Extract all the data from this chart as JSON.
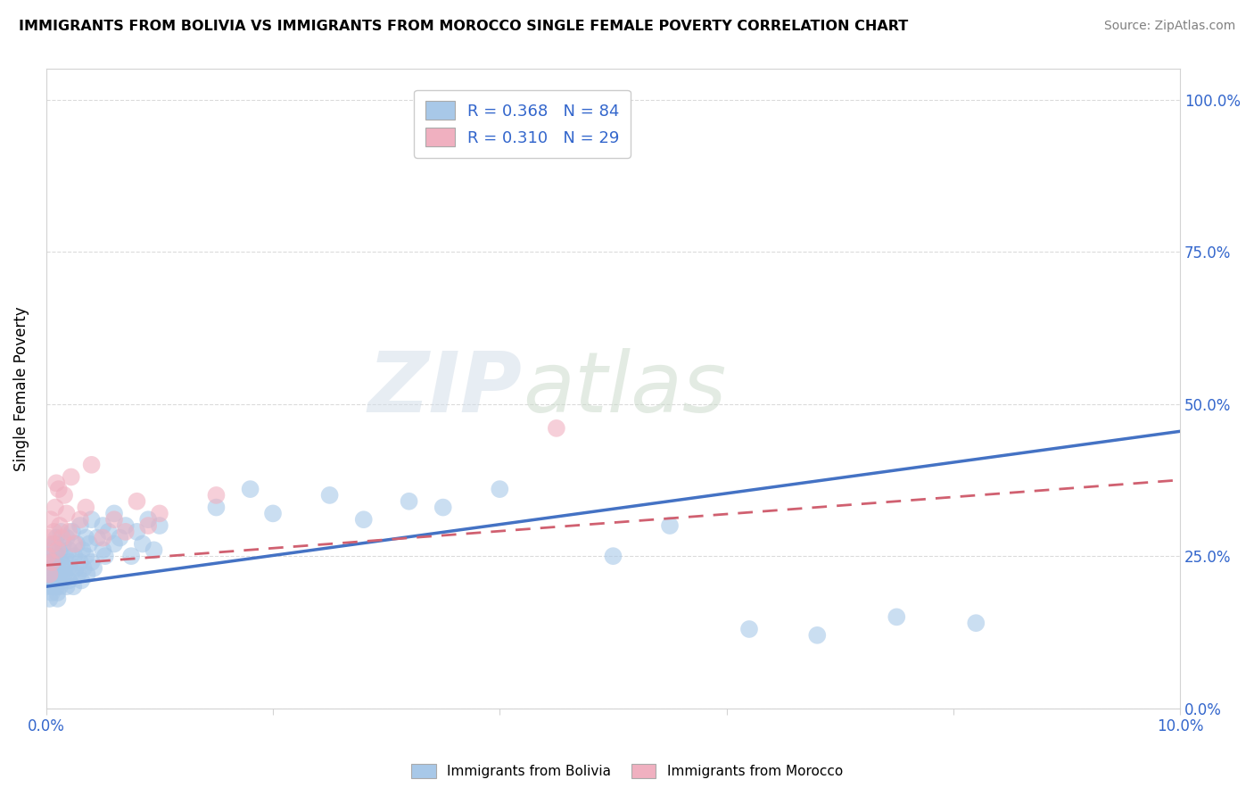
{
  "title": "IMMIGRANTS FROM BOLIVIA VS IMMIGRANTS FROM MOROCCO SINGLE FEMALE POVERTY CORRELATION CHART",
  "source": "Source: ZipAtlas.com",
  "ylabel": "Single Female Poverty",
  "xlim": [
    0.0,
    0.1
  ],
  "ylim": [
    0.0,
    1.05
  ],
  "ytick_positions": [
    0.0,
    0.25,
    0.5,
    0.75,
    1.0
  ],
  "yticklabels_right": [
    "0.0%",
    "25.0%",
    "50.0%",
    "75.0%",
    "100.0%"
  ],
  "bolivia_color": "#a8c8e8",
  "morocco_color": "#f0b0c0",
  "bolivia_R": 0.368,
  "bolivia_N": 84,
  "morocco_R": 0.31,
  "morocco_N": 29,
  "bolivia_line_color": "#4472c4",
  "morocco_line_color": "#d06070",
  "watermark_zip": "ZIP",
  "watermark_atlas": "atlas",
  "bolivia_x": [
    0.0001,
    0.0002,
    0.0003,
    0.0003,
    0.0004,
    0.0004,
    0.0005,
    0.0005,
    0.0006,
    0.0006,
    0.0007,
    0.0007,
    0.0008,
    0.0008,
    0.0009,
    0.0009,
    0.001,
    0.001,
    0.001,
    0.001,
    0.0011,
    0.0012,
    0.0012,
    0.0013,
    0.0013,
    0.0014,
    0.0015,
    0.0015,
    0.0016,
    0.0017,
    0.0018,
    0.0018,
    0.0019,
    0.002,
    0.002,
    0.0021,
    0.0022,
    0.0023,
    0.0024,
    0.0025,
    0.0026,
    0.0027,
    0.0028,
    0.003,
    0.003,
    0.0031,
    0.0032,
    0.0033,
    0.0035,
    0.0035,
    0.0036,
    0.0038,
    0.004,
    0.004,
    0.0042,
    0.0045,
    0.005,
    0.005,
    0.0052,
    0.0055,
    0.006,
    0.006,
    0.0065,
    0.007,
    0.0075,
    0.008,
    0.0085,
    0.009,
    0.0095,
    0.01,
    0.015,
    0.018,
    0.02,
    0.025,
    0.028,
    0.032,
    0.035,
    0.04,
    0.05,
    0.055,
    0.062,
    0.068,
    0.075,
    0.082
  ],
  "bolivia_y": [
    0.2,
    0.22,
    0.18,
    0.25,
    0.21,
    0.24,
    0.19,
    0.26,
    0.2,
    0.23,
    0.22,
    0.27,
    0.21,
    0.24,
    0.2,
    0.28,
    0.19,
    0.23,
    0.25,
    0.18,
    0.22,
    0.26,
    0.2,
    0.24,
    0.29,
    0.21,
    0.23,
    0.27,
    0.22,
    0.25,
    0.2,
    0.28,
    0.23,
    0.21,
    0.26,
    0.24,
    0.22,
    0.29,
    0.2,
    0.25,
    0.23,
    0.27,
    0.22,
    0.24,
    0.3,
    0.21,
    0.26,
    0.23,
    0.28,
    0.25,
    0.22,
    0.27,
    0.24,
    0.31,
    0.23,
    0.28,
    0.26,
    0.3,
    0.25,
    0.29,
    0.27,
    0.32,
    0.28,
    0.3,
    0.25,
    0.29,
    0.27,
    0.31,
    0.26,
    0.3,
    0.33,
    0.36,
    0.32,
    0.35,
    0.31,
    0.34,
    0.33,
    0.36,
    0.25,
    0.3,
    0.13,
    0.12,
    0.15,
    0.14
  ],
  "morocco_x": [
    0.0001,
    0.0002,
    0.0003,
    0.0004,
    0.0005,
    0.0006,
    0.0007,
    0.0008,
    0.001,
    0.0012,
    0.0014,
    0.0016,
    0.0018,
    0.002,
    0.0022,
    0.0025,
    0.003,
    0.0035,
    0.004,
    0.005,
    0.006,
    0.007,
    0.008,
    0.009,
    0.01,
    0.015,
    0.045,
    0.0009,
    0.0011
  ],
  "morocco_y": [
    0.25,
    0.28,
    0.22,
    0.31,
    0.24,
    0.27,
    0.29,
    0.33,
    0.26,
    0.3,
    0.28,
    0.35,
    0.32,
    0.29,
    0.38,
    0.27,
    0.31,
    0.33,
    0.4,
    0.28,
    0.31,
    0.29,
    0.34,
    0.3,
    0.32,
    0.35,
    0.46,
    0.37,
    0.36
  ],
  "bolivia_line_x0": 0.0,
  "bolivia_line_y0": 0.2,
  "bolivia_line_x1": 0.1,
  "bolivia_line_y1": 0.455,
  "morocco_line_x0": 0.0,
  "morocco_line_y0": 0.235,
  "morocco_line_x1": 0.1,
  "morocco_line_y1": 0.375
}
